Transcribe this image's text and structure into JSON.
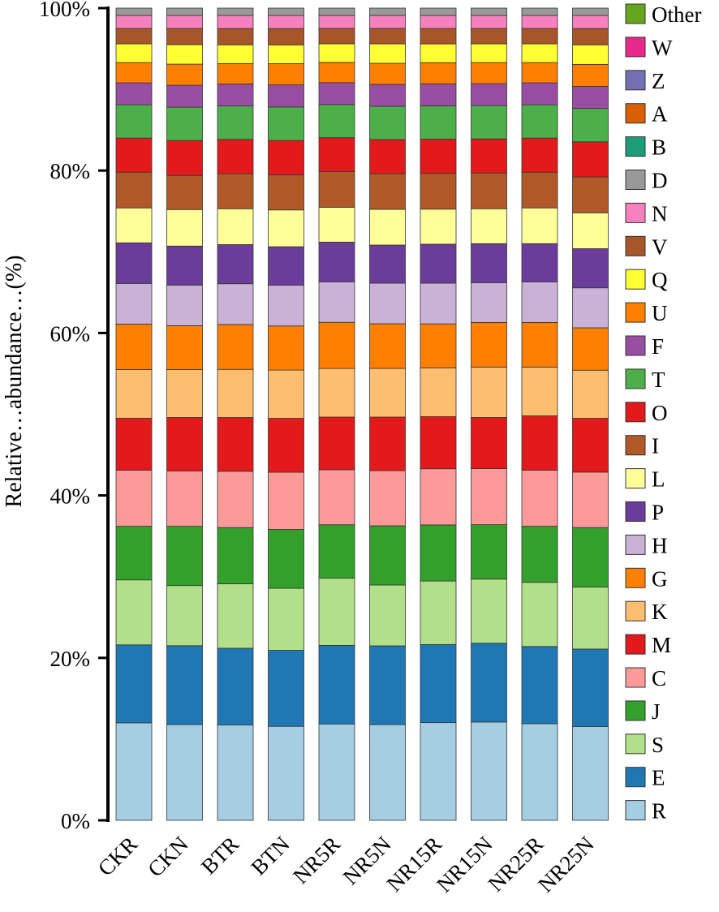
{
  "chart_data": {
    "type": "bar",
    "stacked": true,
    "title": "",
    "xlabel": "",
    "ylabel": "Relative…abundance…(%)",
    "ylim": [
      0,
      100
    ],
    "yticks": [
      0,
      20,
      40,
      60,
      80,
      100
    ],
    "ytick_labels": [
      "0%",
      "20%",
      "40%",
      "60%",
      "80%",
      "100%"
    ],
    "categories": [
      "CKR",
      "CKN",
      "BTR",
      "BTN",
      "NR5R",
      "NR5N",
      "NR15R",
      "NR15N",
      "NR25R",
      "NR25N"
    ],
    "legend_position": "right",
    "legend_order": [
      "Other",
      "W",
      "Z",
      "A",
      "B",
      "D",
      "N",
      "V",
      "Q",
      "U",
      "F",
      "T",
      "O",
      "I",
      "L",
      "P",
      "H",
      "G",
      "K",
      "M",
      "C",
      "J",
      "S",
      "E",
      "R"
    ],
    "series": [
      {
        "name": "R",
        "color": "#a6cee3",
        "values": [
          12.0,
          11.8,
          11.7,
          11.5,
          11.9,
          11.8,
          12.0,
          12.1,
          11.9,
          11.5
        ]
      },
      {
        "name": "E",
        "color": "#1f78b4",
        "values": [
          9.6,
          9.7,
          9.4,
          9.3,
          9.7,
          9.7,
          9.6,
          9.7,
          9.5,
          9.5
        ]
      },
      {
        "name": "S",
        "color": "#b2df8a",
        "values": [
          8.0,
          7.4,
          7.9,
          7.6,
          8.3,
          7.5,
          7.8,
          7.9,
          7.9,
          7.6
        ]
      },
      {
        "name": "J",
        "color": "#33a02c",
        "values": [
          6.6,
          7.3,
          6.9,
          7.2,
          6.6,
          7.3,
          6.9,
          6.7,
          6.9,
          7.3
        ]
      },
      {
        "name": "C",
        "color": "#fb9a99",
        "values": [
          6.9,
          6.8,
          6.9,
          7.0,
          6.8,
          6.8,
          6.9,
          6.9,
          6.9,
          6.8
        ]
      },
      {
        "name": "M",
        "color": "#e31a1c",
        "values": [
          6.4,
          6.6,
          6.6,
          6.6,
          6.5,
          6.6,
          6.4,
          6.3,
          6.7,
          6.6
        ]
      },
      {
        "name": "K",
        "color": "#fdbf6f",
        "values": [
          6.0,
          5.9,
          5.9,
          5.9,
          6.0,
          6.0,
          6.0,
          6.2,
          6.0,
          5.9
        ]
      },
      {
        "name": "G",
        "color": "#ff7f00",
        "values": [
          5.6,
          5.4,
          5.5,
          5.4,
          5.7,
          5.5,
          5.4,
          5.5,
          5.5,
          5.2
        ]
      },
      {
        "name": "H",
        "color": "#cab2d6",
        "values": [
          5.0,
          5.0,
          5.0,
          5.0,
          5.0,
          5.0,
          5.0,
          4.9,
          5.0,
          4.9
        ]
      },
      {
        "name": "P",
        "color": "#6a3d9a",
        "values": [
          5.0,
          4.8,
          4.8,
          4.7,
          4.9,
          4.7,
          4.8,
          4.8,
          4.7,
          4.8
        ]
      },
      {
        "name": "L",
        "color": "#ffff99",
        "values": [
          4.3,
          4.5,
          4.4,
          4.5,
          4.3,
          4.4,
          4.3,
          4.3,
          4.4,
          4.4
        ]
      },
      {
        "name": "I",
        "color": "#b15928",
        "values": [
          4.4,
          4.2,
          4.3,
          4.3,
          4.4,
          4.4,
          4.4,
          4.4,
          4.4,
          4.4
        ]
      },
      {
        "name": "O",
        "color": "#e31a1c",
        "values": [
          4.2,
          4.3,
          4.2,
          4.2,
          4.2,
          4.2,
          4.2,
          4.2,
          4.2,
          4.3
        ]
      },
      {
        "name": "T",
        "color": "#4daf4a",
        "values": [
          4.1,
          4.1,
          4.1,
          4.1,
          4.1,
          4.1,
          4.1,
          4.1,
          4.1,
          4.1
        ]
      },
      {
        "name": "F",
        "color": "#984ea3",
        "values": [
          2.7,
          2.7,
          2.7,
          2.7,
          2.7,
          2.7,
          2.7,
          2.7,
          2.7,
          2.7
        ]
      },
      {
        "name": "U",
        "color": "#ff7f00",
        "values": [
          2.5,
          2.6,
          2.5,
          2.6,
          2.5,
          2.6,
          2.6,
          2.6,
          2.5,
          2.7
        ]
      },
      {
        "name": "Q",
        "color": "#ffff33",
        "values": [
          2.3,
          2.4,
          2.3,
          2.3,
          2.3,
          2.4,
          2.3,
          2.3,
          2.3,
          2.4
        ]
      },
      {
        "name": "V",
        "color": "#a65628",
        "values": [
          1.9,
          2.0,
          2.0,
          2.0,
          1.9,
          1.9,
          1.9,
          1.9,
          1.9,
          2.0
        ]
      },
      {
        "name": "N",
        "color": "#f781bf",
        "values": [
          1.6,
          1.6,
          1.6,
          1.6,
          1.6,
          1.6,
          1.6,
          1.6,
          1.6,
          1.6
        ]
      },
      {
        "name": "D",
        "color": "#999999",
        "values": [
          0.9,
          0.9,
          0.9,
          0.9,
          0.9,
          0.9,
          0.9,
          0.9,
          0.9,
          0.9
        ]
      },
      {
        "name": "B",
        "color": "#1b9e77",
        "values": [
          0.0,
          0.0,
          0.0,
          0.0,
          0.0,
          0.0,
          0.0,
          0.0,
          0.0,
          0.0
        ]
      },
      {
        "name": "A",
        "color": "#d95f02",
        "values": [
          0.0,
          0.0,
          0.0,
          0.0,
          0.0,
          0.0,
          0.0,
          0.0,
          0.0,
          0.0
        ]
      },
      {
        "name": "Z",
        "color": "#7570b3",
        "values": [
          0.0,
          0.0,
          0.0,
          0.0,
          0.0,
          0.0,
          0.0,
          0.0,
          0.0,
          0.0
        ]
      },
      {
        "name": "W",
        "color": "#e7298a",
        "values": [
          0.0,
          0.0,
          0.0,
          0.0,
          0.0,
          0.0,
          0.0,
          0.0,
          0.0,
          0.0
        ]
      },
      {
        "name": "Other",
        "color": "#66a61e",
        "values": [
          0.0,
          0.0,
          0.0,
          0.0,
          0.0,
          0.0,
          0.0,
          0.0,
          0.0,
          0.0
        ]
      }
    ]
  }
}
